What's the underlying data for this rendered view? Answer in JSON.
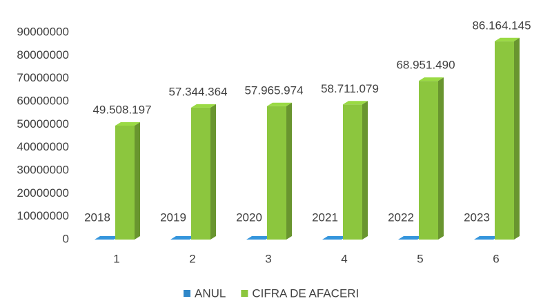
{
  "chart_data": {
    "type": "bar3d",
    "categories": [
      "1",
      "2",
      "3",
      "4",
      "5",
      "6"
    ],
    "series": [
      {
        "name": "ANUL",
        "color": "#2f87c8",
        "values": [
          2018,
          2019,
          2020,
          2021,
          2022,
          2023
        ]
      },
      {
        "name": "CIFRA DE AFACERI",
        "color": "#8cc63e",
        "values": [
          49508197,
          57344364,
          57965974,
          58711079,
          68951490,
          86164145
        ],
        "value_labels": [
          "49.508.197",
          "57.344.364",
          "57.965.974",
          "58.711.079",
          "68.951.490",
          "86.164.145"
        ]
      }
    ],
    "ylim": [
      0,
      90000000
    ],
    "yticks": [
      0,
      10000000,
      20000000,
      30000000,
      40000000,
      50000000,
      60000000,
      70000000,
      80000000,
      90000000
    ],
    "grid": false,
    "legend": "bottom"
  }
}
